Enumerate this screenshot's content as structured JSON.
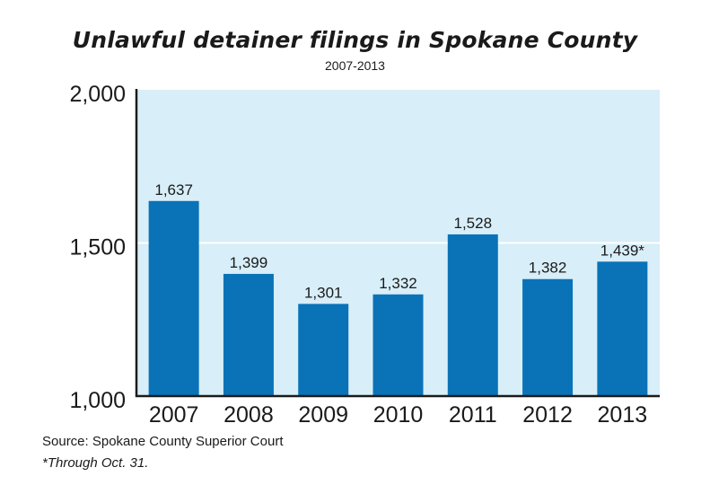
{
  "chart_data": {
    "type": "bar",
    "title": "Unlawful detainer filings in Spokane County",
    "subtitle": "2007-2013",
    "categories": [
      "2007",
      "2008",
      "2009",
      "2010",
      "2011",
      "2012",
      "2013"
    ],
    "values": [
      1637,
      1399,
      1301,
      1332,
      1528,
      1382,
      1439
    ],
    "value_labels": [
      "1,637",
      "1,399",
      "1,301",
      "1,332",
      "1,528",
      "1,382",
      "1,439*"
    ],
    "ylim": [
      1000,
      2000
    ],
    "yticks": [
      1000,
      1500,
      2000
    ],
    "ytick_labels": [
      "1,000",
      "1,500",
      "2,000"
    ],
    "grid": true,
    "legend": "none",
    "colors": {
      "bar": "#0a73b8",
      "plot_background": "#d8eef8",
      "axis": "#1a1a1a",
      "gridline": "#ffffff"
    }
  },
  "source": "Source: Spokane County Superior Court",
  "footnote": "*Through Oct. 31."
}
